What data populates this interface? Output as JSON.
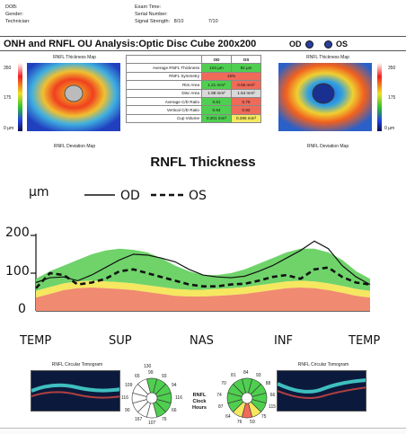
{
  "header": {
    "dob_label": "DOB:",
    "gender_label": "Gender:",
    "technician_label": "Technician:",
    "exam_time_label": "Exam Time:",
    "serial_label": "Serial Number:",
    "signal_label": "Signal Strength:",
    "signal_od": "8/10",
    "signal_os": "7/10"
  },
  "title_bar": {
    "title": "ONH and RNFL OU Analysis:Optic Disc Cube 200x200",
    "od_label": "OD",
    "os_label": "OS",
    "eye_color": "#2b3f9e"
  },
  "maps": {
    "thickness_title": "RNFL Thickness Map",
    "deviation_title": "RNFL Deviation Map",
    "tick_max": "350",
    "tick_mid": "175",
    "tick_min": "0 µm"
  },
  "metrics": {
    "col_od": "OD",
    "col_os": "OS",
    "rows": [
      {
        "label": "Average RNFL Thickness",
        "od": "104 µm",
        "os": "92 µm",
        "od_color": "#4fcf4f",
        "os_color": "#4fcf4f"
      },
      {
        "label": "RNFL Symmetry",
        "od": "16%",
        "os": "",
        "od_color": "#f06a5a",
        "os_color": "#f06a5a",
        "merged": true
      },
      {
        "label": "Rim Area",
        "od": "1.21 mm²",
        "os": "0.56 mm²",
        "od_color": "#4fcf4f",
        "os_color": "#f06a5a"
      },
      {
        "label": "Disc Area",
        "od": "1.98 mm²",
        "os": "1.54 mm²",
        "od_color": "#d9d9d9",
        "os_color": "#d9d9d9"
      },
      {
        "label": "Average C/D Ratio",
        "od": "0.61",
        "os": "0.79",
        "od_color": "#4fcf4f",
        "os_color": "#f06a5a"
      },
      {
        "label": "Vertical C/D Ratio",
        "od": "0.64",
        "os": "0.82",
        "od_color": "#4fcf4f",
        "os_color": "#f06a5a"
      },
      {
        "label": "Cup Volume",
        "od": "0.201 mm³",
        "os": "0.295 mm³",
        "od_color": "#4fcf4f",
        "os_color": "#f5e860"
      }
    ]
  },
  "rnfl_title": "RNFL Thickness",
  "chart_data": {
    "type": "line",
    "y_unit": "µm",
    "ylim": [
      0,
      250
    ],
    "y_ticks": [
      "0",
      "100",
      "200"
    ],
    "x_labels": [
      "TEMP",
      "SUP",
      "NAS",
      "INF",
      "TEMP"
    ],
    "legend": [
      {
        "name": "OD",
        "style": "solid"
      },
      {
        "name": "OS",
        "style": "dashed"
      }
    ],
    "series": [
      {
        "name": "OD",
        "values": [
          75,
          88,
          90,
          80,
          95,
          115,
          135,
          150,
          148,
          140,
          130,
          110,
          95,
          90,
          88,
          92,
          105,
          120,
          140,
          160,
          185,
          165,
          120,
          90,
          70
        ]
      },
      {
        "name": "OS",
        "values": [
          60,
          100,
          95,
          70,
          75,
          85,
          105,
          110,
          100,
          90,
          80,
          70,
          65,
          65,
          70,
          72,
          80,
          90,
          95,
          85,
          110,
          115,
          90,
          75,
          70
        ]
      }
    ],
    "normal_bands": {
      "p5": [
        35,
        45,
        55,
        60,
        62,
        60,
        58,
        55,
        50,
        45,
        40,
        38,
        38,
        40,
        42,
        45,
        50,
        55,
        60,
        62,
        60,
        55,
        48,
        40,
        35
      ],
      "p95": [
        85,
        105,
        120,
        135,
        150,
        160,
        165,
        162,
        155,
        140,
        120,
        105,
        95,
        95,
        100,
        110,
        125,
        140,
        155,
        165,
        165,
        155,
        135,
        105,
        85
      ]
    }
  },
  "clock": {
    "title_line1": "RNFL",
    "title_line2": "Clock",
    "title_line3": "Hours",
    "od_top": "130",
    "od_nums": [
      "99",
      "93",
      "94",
      "116",
      "66",
      "76",
      "107",
      "167",
      "90",
      "116",
      "109",
      "65"
    ],
    "os_nums": [
      "84",
      "93",
      "88",
      "66",
      "115",
      "75",
      "59",
      "76",
      "64",
      "87",
      "74",
      "70",
      "81"
    ],
    "tomogram_title": "RNFL Circular Tomogram"
  }
}
